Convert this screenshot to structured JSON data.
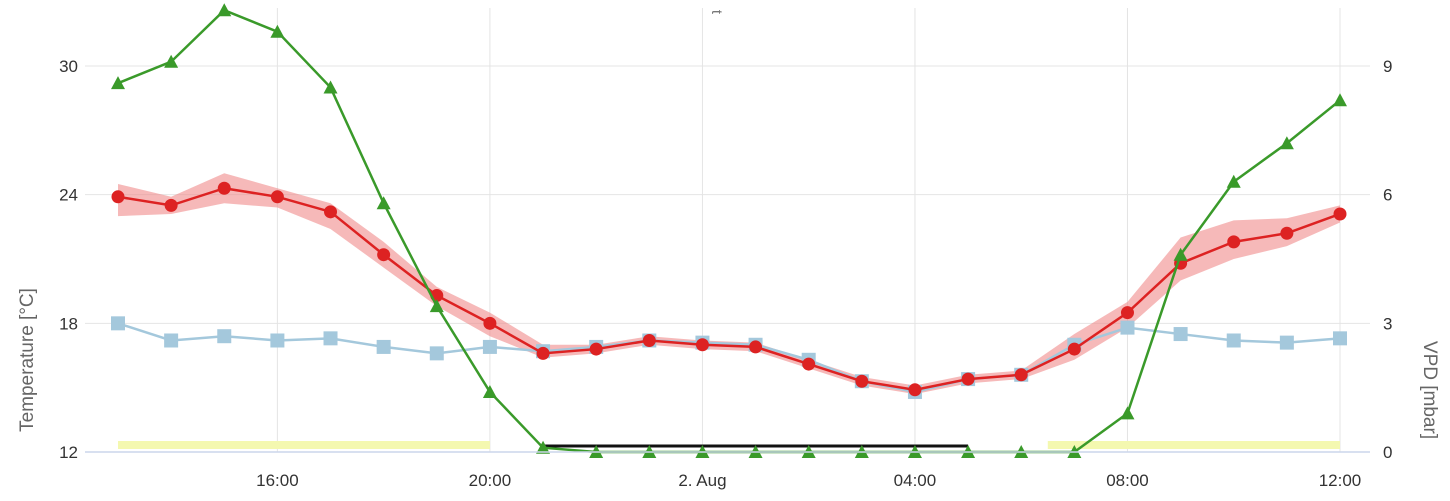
{
  "chart_data": {
    "type": "line",
    "title": "",
    "xlabel": "",
    "ylabel": "Temperature [°C]",
    "y2label": "VPD [mbar]",
    "ylim": [
      12,
      30.5
    ],
    "y2lim": [
      0,
      9.25
    ],
    "xlim": [
      "2024-08-01T13:00",
      "2024-08-02T12:00"
    ],
    "grid": true,
    "legend": "none",
    "x_tick_labels": [
      "16:00",
      "20:00",
      "2. Aug",
      "04:00",
      "08:00",
      "12:00"
    ],
    "y_tick_labels": [
      "12",
      "18",
      "24",
      "30"
    ],
    "y2_tick_labels": [
      "0",
      "3",
      "6",
      "9"
    ],
    "top_fragment": "t",
    "colors": {
      "temperature": "#dd2222",
      "temperature_band": "#f08a8a",
      "second_series": "#a4c8dc",
      "vpd": "#3a9a2a",
      "black_bar": "#111111",
      "yellow_band": "#f4f8b0",
      "grid": "#e4e4e4"
    },
    "x": [
      "13:00",
      "14:00",
      "15:00",
      "16:00",
      "17:00",
      "18:00",
      "19:00",
      "20:00",
      "21:00",
      "22:00",
      "23:00",
      "00:00",
      "01:00",
      "02:00",
      "03:00",
      "04:00",
      "05:00",
      "06:00",
      "07:00",
      "08:00",
      "09:00",
      "10:00",
      "11:00",
      "12:00"
    ],
    "series": [
      {
        "axis": "left",
        "marker": "circle",
        "values": [
          23.9,
          23.5,
          24.3,
          23.9,
          23.2,
          21.2,
          19.3,
          18.0,
          16.6,
          16.8,
          17.2,
          17.0,
          16.9,
          16.1,
          15.3,
          14.9,
          15.4,
          15.6,
          16.8,
          18.5,
          20.8,
          21.8,
          22.2,
          23.1
        ],
        "band_low": [
          23.0,
          23.1,
          23.6,
          23.4,
          22.4,
          20.6,
          18.8,
          17.4,
          16.4,
          16.6,
          17.0,
          16.8,
          16.7,
          15.9,
          15.1,
          14.7,
          15.2,
          15.4,
          16.3,
          17.8,
          20.0,
          21.0,
          21.6,
          22.7
        ],
        "band_high": [
          24.5,
          23.9,
          25.0,
          24.3,
          23.6,
          21.8,
          19.7,
          18.5,
          17.0,
          17.0,
          17.4,
          17.2,
          17.1,
          16.3,
          15.5,
          15.1,
          15.6,
          15.8,
          17.5,
          19.0,
          22.0,
          22.8,
          22.9,
          23.5
        ]
      },
      {
        "axis": "left",
        "marker": "square",
        "values": [
          18.0,
          17.2,
          17.4,
          17.2,
          17.3,
          16.9,
          16.6,
          16.9,
          16.7,
          16.9,
          17.2,
          17.1,
          17.0,
          16.3,
          15.3,
          14.8,
          15.4,
          15.6,
          17.0,
          17.8,
          17.5,
          17.2,
          17.1,
          17.3
        ]
      },
      {
        "axis": "right",
        "marker": "triangle",
        "values": [
          8.6,
          9.1,
          10.3,
          9.8,
          8.5,
          5.8,
          3.4,
          1.4,
          0.1,
          0,
          0,
          0,
          0,
          0,
          0,
          0,
          0,
          0,
          0,
          0.9,
          4.6,
          6.3,
          7.2,
          8.2
        ]
      }
    ],
    "black_bar": {
      "from": "21:00",
      "to": "05:00"
    },
    "yellow_band_ranges": [
      [
        "13:00",
        "20:00"
      ],
      [
        "06:30",
        "12:00"
      ]
    ]
  }
}
